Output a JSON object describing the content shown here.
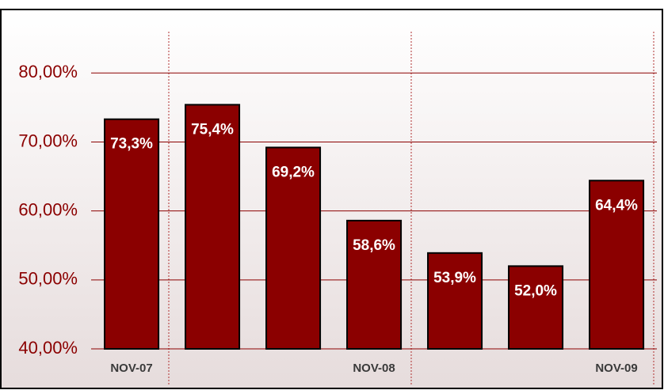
{
  "chart_data": {
    "type": "bar",
    "categories": [
      "NOV-07",
      null,
      null,
      "NOV-08",
      null,
      null,
      "NOV-09"
    ],
    "values": [
      73.3,
      75.4,
      69.2,
      58.6,
      53.9,
      52.0,
      64.4
    ],
    "value_labels": [
      "73,3%",
      "75,4%",
      "69,2%",
      "58,6%",
      "53,9%",
      "52,0%",
      "64,4%"
    ],
    "color": "#8b0000",
    "ylim": [
      40,
      86
    ],
    "yticks": [
      {
        "value": 40,
        "label": "40,00%"
      },
      {
        "value": 50,
        "label": "50,00%"
      },
      {
        "value": 60,
        "label": "60,00%"
      },
      {
        "value": 70,
        "label": "70,00%"
      },
      {
        "value": 80,
        "label": "80,00%"
      }
    ],
    "grid": true
  }
}
